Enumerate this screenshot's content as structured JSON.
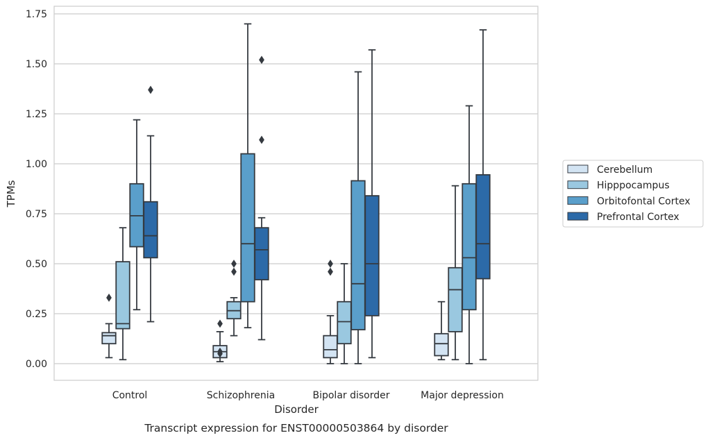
{
  "chart_data": {
    "type": "box",
    "title": "",
    "caption": "Transcript expression for ENST00000503864 by disorder",
    "xlabel": "Disorder",
    "ylabel": "TPMs",
    "ylim": [
      -0.08,
      1.78
    ],
    "yticks": [
      0.0,
      0.25,
      0.5,
      0.75,
      1.0,
      1.25,
      1.5,
      1.75
    ],
    "ytick_labels": [
      "0.00",
      "0.25",
      "0.50",
      "0.75",
      "1.00",
      "1.25",
      "1.50",
      "1.75"
    ],
    "grid": "horizontal",
    "legend_position": "right",
    "categories": [
      "Control",
      "Schizophrenia",
      "Bipolar disorder",
      "Major depression"
    ],
    "series": [
      {
        "name": "Cerebellum",
        "color": "#d3e4f3",
        "boxes": [
          {
            "whislo": 0.03,
            "q1": 0.1,
            "med": 0.14,
            "q3": 0.155,
            "whishi": 0.2,
            "fliers": [
              0.33
            ]
          },
          {
            "whislo": 0.01,
            "q1": 0.03,
            "med": 0.06,
            "q3": 0.09,
            "whishi": 0.16,
            "fliers": [
              0.2,
              0.06,
              0.05
            ]
          },
          {
            "whislo": 0.0,
            "q1": 0.03,
            "med": 0.07,
            "q3": 0.14,
            "whishi": 0.24,
            "fliers": [
              0.46,
              0.5
            ]
          },
          {
            "whislo": 0.02,
            "q1": 0.04,
            "med": 0.1,
            "q3": 0.15,
            "whishi": 0.31,
            "fliers": []
          }
        ]
      },
      {
        "name": "Hipppocampus",
        "color": "#9ac8e0",
        "boxes": [
          {
            "whislo": 0.02,
            "q1": 0.175,
            "med": 0.2,
            "q3": 0.51,
            "whishi": 0.68,
            "fliers": []
          },
          {
            "whislo": 0.14,
            "q1": 0.225,
            "med": 0.265,
            "q3": 0.31,
            "whishi": 0.33,
            "fliers": [
              0.46,
              0.5
            ]
          },
          {
            "whislo": 0.0,
            "q1": 0.1,
            "med": 0.21,
            "q3": 0.31,
            "whishi": 0.5,
            "fliers": []
          },
          {
            "whislo": 0.02,
            "q1": 0.16,
            "med": 0.37,
            "q3": 0.48,
            "whishi": 0.89,
            "fliers": []
          }
        ]
      },
      {
        "name": "Orbitofontal Cortex",
        "color": "#5a9fcb",
        "boxes": [
          {
            "whislo": 0.27,
            "q1": 0.585,
            "med": 0.74,
            "q3": 0.9,
            "whishi": 1.22,
            "fliers": []
          },
          {
            "whislo": 0.18,
            "q1": 0.31,
            "med": 0.6,
            "q3": 1.05,
            "whishi": 1.7,
            "fliers": []
          },
          {
            "whislo": 0.0,
            "q1": 0.17,
            "med": 0.4,
            "q3": 0.915,
            "whishi": 1.46,
            "fliers": []
          },
          {
            "whislo": 0.0,
            "q1": 0.27,
            "med": 0.53,
            "q3": 0.9,
            "whishi": 1.29,
            "fliers": []
          }
        ]
      },
      {
        "name": "Prefrontal Cortex",
        "color": "#2c6aa8",
        "boxes": [
          {
            "whislo": 0.21,
            "q1": 0.53,
            "med": 0.64,
            "q3": 0.81,
            "whishi": 1.14,
            "fliers": [
              1.37
            ]
          },
          {
            "whislo": 0.12,
            "q1": 0.42,
            "med": 0.57,
            "q3": 0.68,
            "whishi": 0.73,
            "fliers": [
              1.12,
              1.52
            ]
          },
          {
            "whislo": 0.03,
            "q1": 0.24,
            "med": 0.5,
            "q3": 0.84,
            "whishi": 1.57,
            "fliers": []
          },
          {
            "whislo": 0.02,
            "q1": 0.425,
            "med": 0.6,
            "q3": 0.945,
            "whishi": 1.67,
            "fliers": []
          }
        ]
      }
    ]
  }
}
